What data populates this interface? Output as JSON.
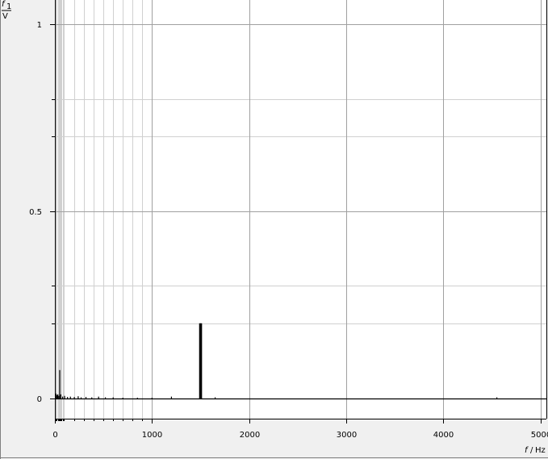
{
  "chart_data": {
    "type": "spectrum",
    "y_axis": {
      "symbol": "f",
      "subscript": "1",
      "unit": "V",
      "range": [
        -0.055,
        1.065
      ],
      "major_ticks": [
        0,
        0.5,
        1
      ],
      "major_tick_labels": [
        "0",
        "0.5",
        "1"
      ],
      "minor_ticks": [
        0.2,
        0.3,
        0.7,
        0.8
      ]
    },
    "x_axis": {
      "symbol": "f",
      "unit": "Hz",
      "label": "f / Hz",
      "range": [
        0,
        5060
      ],
      "major_ticks": [
        0,
        1000,
        2000,
        3000,
        4000,
        5000
      ],
      "major_tick_labels": [
        "0",
        "1000",
        "2000",
        "3000",
        "4000",
        "5000"
      ],
      "log_grid": true
    },
    "series": [
      {
        "points": [
          [
            10,
            0.012
          ],
          [
            20,
            0.008
          ],
          [
            30,
            0.01
          ],
          [
            40,
            0.006
          ],
          [
            50,
            0.075
          ],
          [
            60,
            0.01
          ],
          [
            80,
            0.004
          ],
          [
            100,
            0.006
          ],
          [
            130,
            0.003
          ],
          [
            160,
            0.004
          ],
          [
            200,
            0.003
          ],
          [
            240,
            0.005
          ],
          [
            270,
            0.002
          ],
          [
            320,
            0.003
          ],
          [
            380,
            0.002
          ],
          [
            450,
            0.004
          ],
          [
            520,
            0.002
          ],
          [
            600,
            0.002
          ],
          [
            700,
            0.001
          ],
          [
            850,
            0.001
          ],
          [
            1000,
            0.001
          ],
          [
            1200,
            0.004
          ],
          [
            1490,
            0.2
          ],
          [
            1495,
            0.2
          ],
          [
            1500,
            0.2
          ],
          [
            1505,
            0.2
          ],
          [
            1510,
            0.2
          ],
          [
            1650,
            0.002
          ],
          [
            4550,
            0.002
          ]
        ]
      }
    ],
    "colors": {
      "background": "#f0f0f0",
      "plot_background": "#ffffff",
      "major_grid": "#a0a0a0",
      "minor_grid": "#d0d0d0",
      "axis": "#000000",
      "series": "#000000"
    },
    "grid": true
  }
}
